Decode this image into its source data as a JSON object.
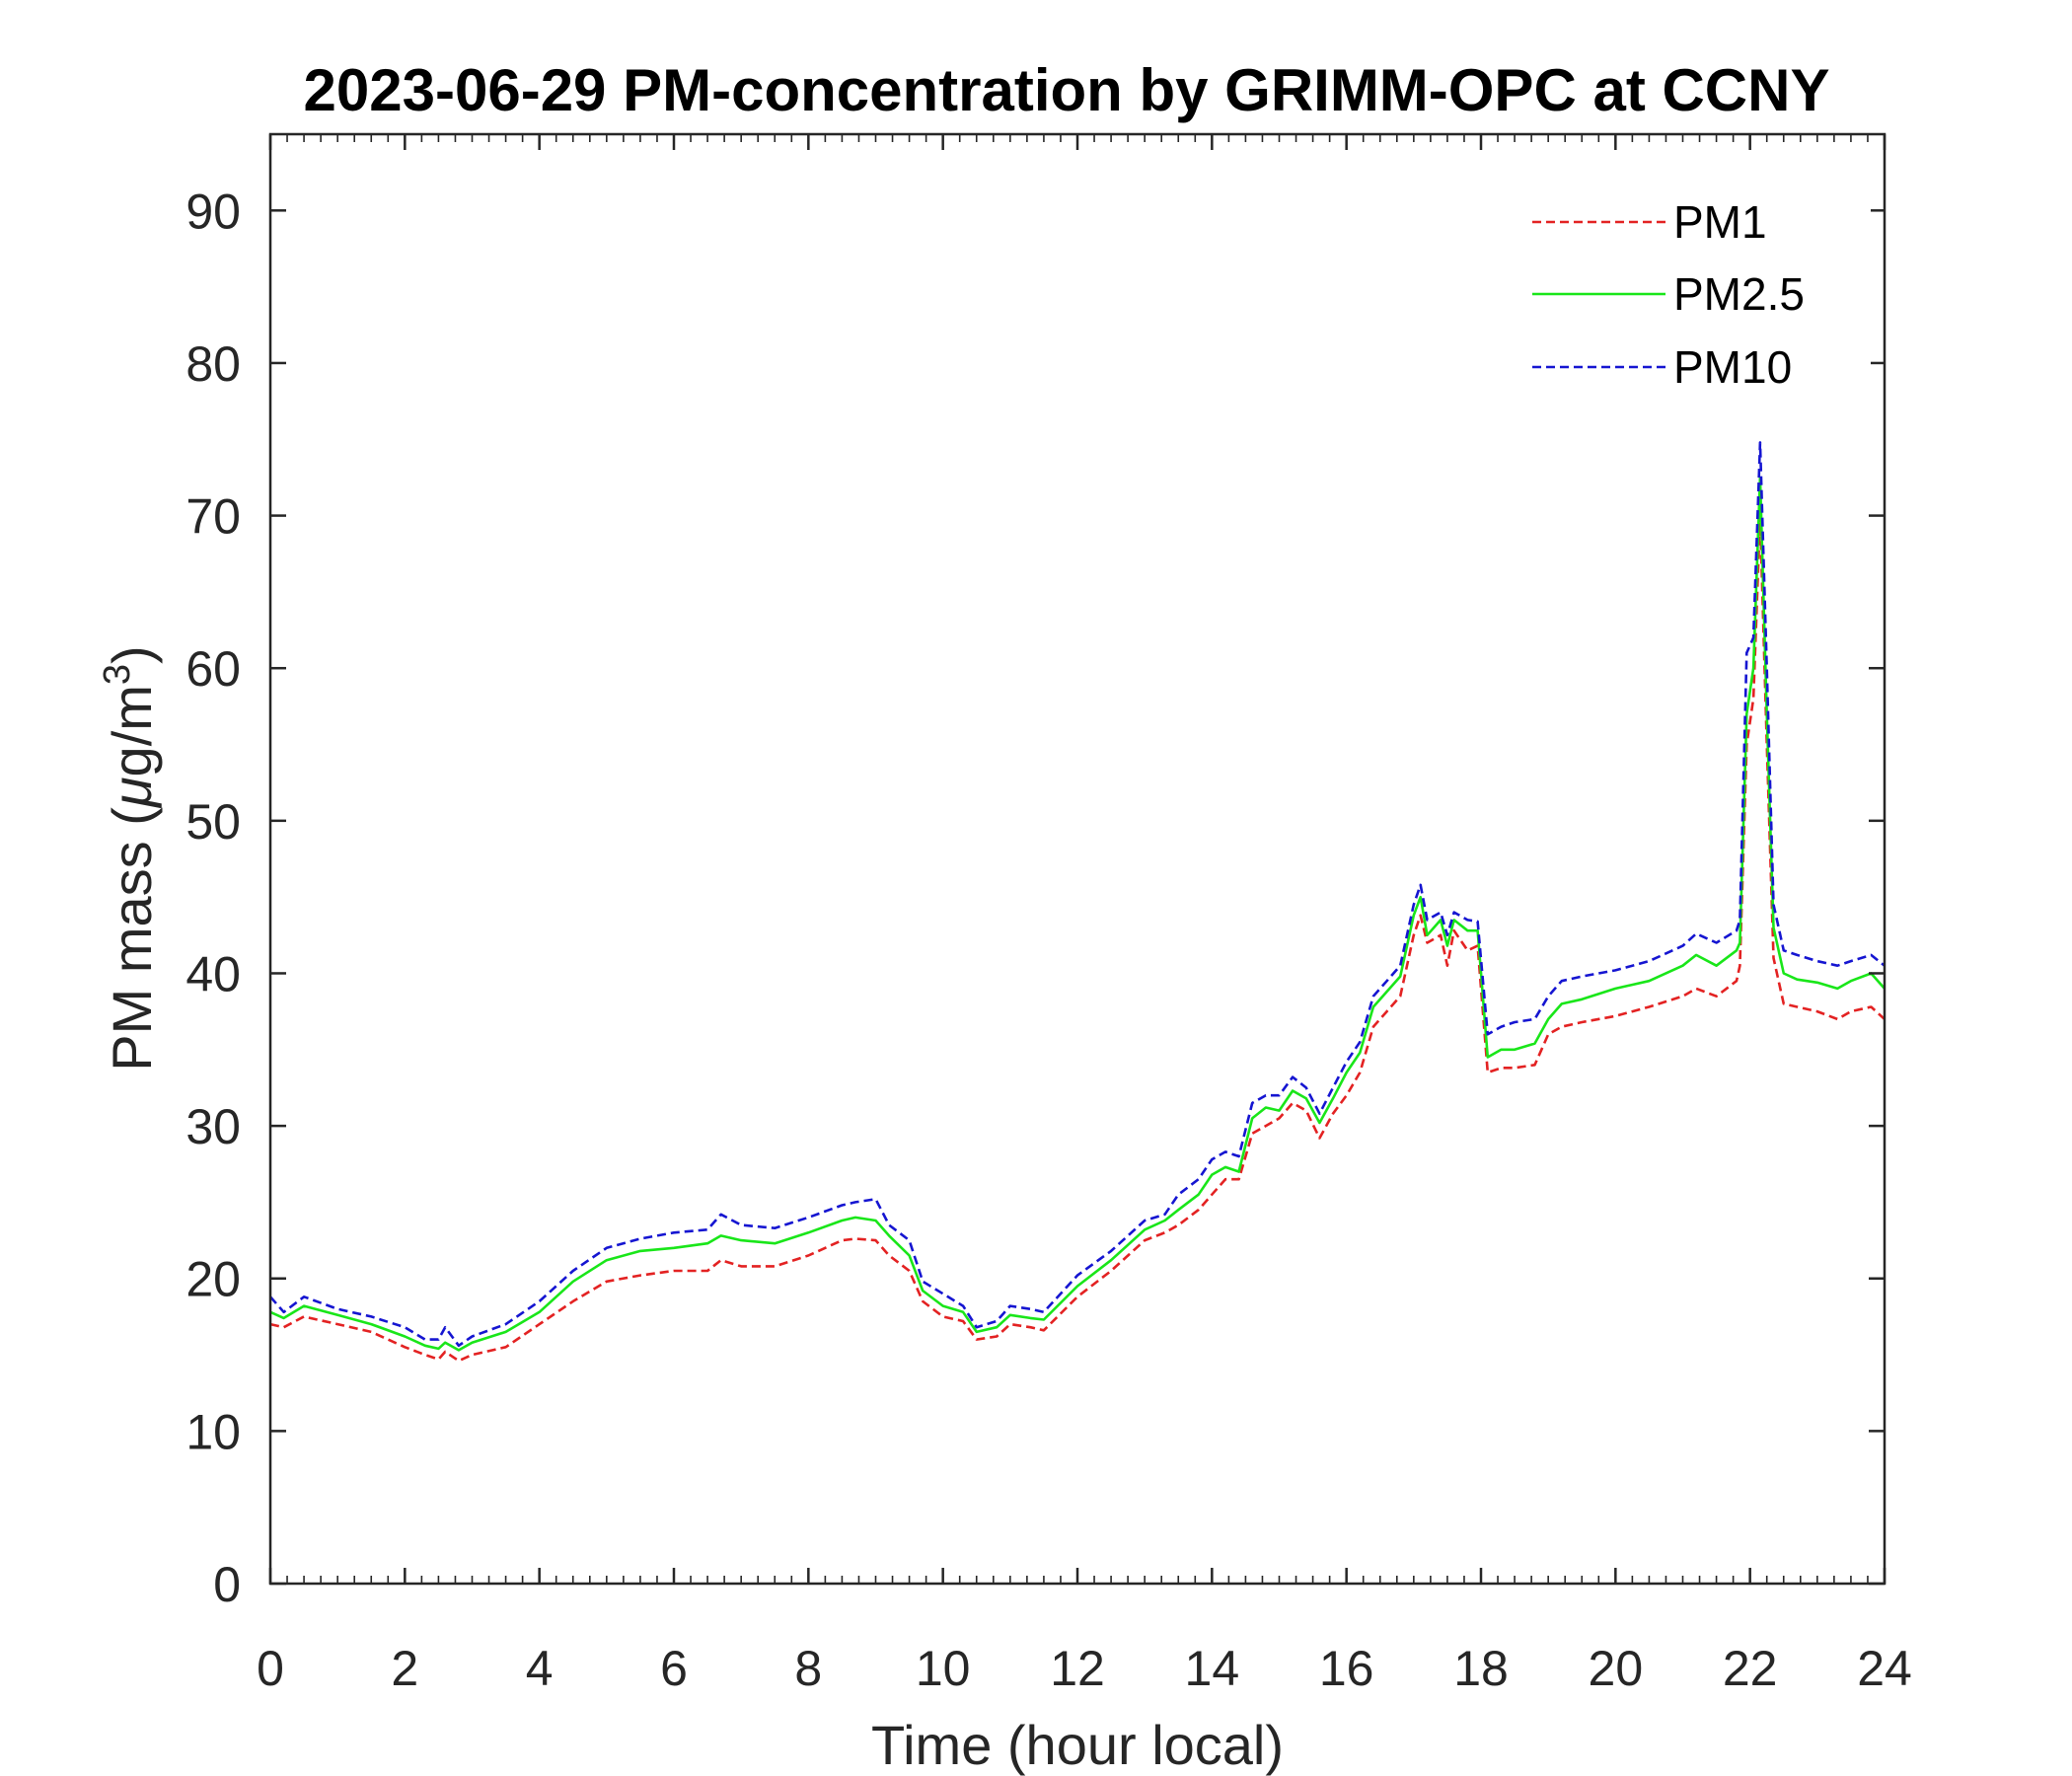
{
  "chart_data": {
    "type": "line",
    "title": "2023-06-29 PM-concentration by GRIMM-OPC at CCNY",
    "xlabel": "Time (hour local)",
    "ylabel_main": "PM mass (",
    "ylabel_mu": "μ",
    "ylabel_unit": "g/m",
    "ylabel_sup": "3",
    "ylabel_close": ")",
    "xlim": [
      0,
      24
    ],
    "ylim": [
      0,
      95
    ],
    "xticks": [
      0,
      2,
      4,
      6,
      8,
      10,
      12,
      14,
      16,
      18,
      20,
      22,
      24
    ],
    "yticks": [
      0,
      10,
      20,
      30,
      40,
      50,
      60,
      70,
      80,
      90
    ],
    "grid": false,
    "legend_position": "top-right",
    "series": [
      {
        "name": "PM1",
        "color": "#e32222",
        "dash": "dashed",
        "x": [
          0,
          0.2,
          0.5,
          1.0,
          1.5,
          2.0,
          2.3,
          2.5,
          2.6,
          2.8,
          3.0,
          3.5,
          4.0,
          4.5,
          5.0,
          5.5,
          6.0,
          6.5,
          6.7,
          7.0,
          7.5,
          8.0,
          8.5,
          8.7,
          9.0,
          9.2,
          9.5,
          9.7,
          10.0,
          10.3,
          10.5,
          10.8,
          11.0,
          11.3,
          11.5,
          12.0,
          12.5,
          13.0,
          13.3,
          13.5,
          13.8,
          14.0,
          14.2,
          14.4,
          14.6,
          14.8,
          15.0,
          15.2,
          15.4,
          15.6,
          15.8,
          16.0,
          16.2,
          16.4,
          16.6,
          16.8,
          17.0,
          17.1,
          17.2,
          17.4,
          17.5,
          17.6,
          17.8,
          17.95,
          18.1,
          18.3,
          18.5,
          18.8,
          19.0,
          19.2,
          19.5,
          20.0,
          20.5,
          21.0,
          21.2,
          21.5,
          21.8,
          21.85,
          21.95,
          22.05,
          22.15,
          22.25,
          22.35,
          22.5,
          22.7,
          23.0,
          23.3,
          23.5,
          23.8,
          24.0
        ],
        "y": [
          17.0,
          16.8,
          17.5,
          17.0,
          16.5,
          15.5,
          15.0,
          14.7,
          15.2,
          14.6,
          15.0,
          15.5,
          17.0,
          18.5,
          19.8,
          20.2,
          20.5,
          20.5,
          21.2,
          20.8,
          20.8,
          21.5,
          22.5,
          22.6,
          22.5,
          21.5,
          20.5,
          18.5,
          17.5,
          17.2,
          16.0,
          16.2,
          17.0,
          16.8,
          16.6,
          18.8,
          20.5,
          22.5,
          23.0,
          23.5,
          24.5,
          25.5,
          26.5,
          26.5,
          29.5,
          30.0,
          30.5,
          31.5,
          31.0,
          29.2,
          30.8,
          32.0,
          33.5,
          36.5,
          37.5,
          38.5,
          42.5,
          43.8,
          42.0,
          42.5,
          40.5,
          42.8,
          41.5,
          41.8,
          33.5,
          33.8,
          33.8,
          34.0,
          36.0,
          36.5,
          36.8,
          37.2,
          37.8,
          38.5,
          39.0,
          38.5,
          39.5,
          40.5,
          55.0,
          58.0,
          70.0,
          55.0,
          41.0,
          38.0,
          37.8,
          37.5,
          37.0,
          37.5,
          37.8,
          37.0
        ]
      },
      {
        "name": "PM2.5",
        "color": "#19e619",
        "dash": "solid",
        "x": [
          0,
          0.2,
          0.5,
          1.0,
          1.5,
          2.0,
          2.3,
          2.5,
          2.6,
          2.8,
          3.0,
          3.5,
          4.0,
          4.5,
          5.0,
          5.5,
          6.0,
          6.5,
          6.7,
          7.0,
          7.5,
          8.0,
          8.5,
          8.7,
          9.0,
          9.2,
          9.5,
          9.7,
          10.0,
          10.3,
          10.5,
          10.8,
          11.0,
          11.3,
          11.5,
          12.0,
          12.5,
          13.0,
          13.3,
          13.5,
          13.8,
          14.0,
          14.2,
          14.4,
          14.6,
          14.8,
          15.0,
          15.2,
          15.4,
          15.6,
          15.8,
          16.0,
          16.2,
          16.4,
          16.6,
          16.8,
          17.0,
          17.1,
          17.2,
          17.4,
          17.5,
          17.6,
          17.8,
          17.95,
          18.1,
          18.3,
          18.5,
          18.8,
          19.0,
          19.2,
          19.5,
          20.0,
          20.5,
          21.0,
          21.2,
          21.5,
          21.8,
          21.85,
          21.95,
          22.05,
          22.15,
          22.25,
          22.35,
          22.5,
          22.7,
          23.0,
          23.3,
          23.5,
          23.8,
          24.0
        ],
        "y": [
          17.8,
          17.4,
          18.2,
          17.6,
          17.0,
          16.2,
          15.6,
          15.4,
          15.8,
          15.3,
          15.8,
          16.5,
          17.8,
          19.8,
          21.2,
          21.8,
          22.0,
          22.3,
          22.8,
          22.5,
          22.3,
          23.0,
          23.8,
          24.0,
          23.8,
          22.8,
          21.5,
          19.2,
          18.2,
          17.8,
          16.5,
          16.8,
          17.6,
          17.4,
          17.3,
          19.5,
          21.2,
          23.2,
          23.8,
          24.5,
          25.5,
          26.8,
          27.3,
          27.0,
          30.5,
          31.2,
          31.0,
          32.3,
          31.8,
          30.2,
          31.8,
          33.5,
          34.8,
          37.8,
          38.8,
          39.8,
          43.8,
          45.0,
          42.5,
          43.5,
          41.8,
          43.5,
          42.8,
          42.8,
          34.5,
          35.0,
          35.0,
          35.4,
          37.0,
          38.0,
          38.3,
          39.0,
          39.5,
          40.5,
          41.2,
          40.5,
          41.5,
          42.0,
          57.0,
          60.0,
          72.5,
          57.0,
          43.0,
          40.0,
          39.6,
          39.4,
          39.0,
          39.5,
          40.0,
          39.0
        ]
      },
      {
        "name": "PM10",
        "color": "#1515d1",
        "dash": "dashed",
        "x": [
          0,
          0.2,
          0.5,
          1.0,
          1.5,
          2.0,
          2.3,
          2.5,
          2.6,
          2.8,
          3.0,
          3.5,
          4.0,
          4.5,
          5.0,
          5.5,
          6.0,
          6.5,
          6.7,
          7.0,
          7.5,
          8.0,
          8.5,
          8.7,
          9.0,
          9.2,
          9.5,
          9.7,
          10.0,
          10.3,
          10.5,
          10.8,
          11.0,
          11.3,
          11.5,
          12.0,
          12.5,
          13.0,
          13.3,
          13.5,
          13.8,
          14.0,
          14.2,
          14.4,
          14.6,
          14.8,
          15.0,
          15.2,
          15.4,
          15.6,
          15.8,
          16.0,
          16.2,
          16.4,
          16.6,
          16.8,
          17.0,
          17.1,
          17.2,
          17.4,
          17.5,
          17.6,
          17.8,
          17.95,
          18.1,
          18.3,
          18.5,
          18.8,
          19.0,
          19.2,
          19.5,
          20.0,
          20.5,
          21.0,
          21.2,
          21.5,
          21.8,
          21.85,
          21.95,
          22.05,
          22.15,
          22.25,
          22.35,
          22.5,
          22.7,
          23.0,
          23.3,
          23.5,
          23.8,
          24.0
        ],
        "y": [
          18.8,
          17.8,
          18.8,
          18.0,
          17.5,
          16.8,
          16.0,
          16.0,
          16.8,
          15.6,
          16.2,
          17.0,
          18.5,
          20.5,
          22.0,
          22.6,
          23.0,
          23.2,
          24.2,
          23.5,
          23.3,
          24.0,
          24.8,
          25.0,
          25.2,
          23.5,
          22.5,
          19.8,
          19.0,
          18.2,
          16.8,
          17.2,
          18.2,
          18.0,
          17.8,
          20.2,
          21.8,
          23.8,
          24.2,
          25.5,
          26.5,
          27.8,
          28.3,
          28.0,
          31.5,
          32.0,
          32.0,
          33.2,
          32.5,
          30.8,
          32.5,
          34.2,
          35.5,
          38.5,
          39.5,
          40.5,
          44.5,
          45.8,
          43.5,
          44.0,
          42.5,
          44.0,
          43.5,
          43.4,
          36.0,
          36.5,
          36.8,
          37.0,
          38.5,
          39.5,
          39.8,
          40.2,
          40.8,
          41.8,
          42.6,
          42.0,
          42.8,
          43.5,
          61.0,
          62.0,
          74.8,
          60.0,
          44.5,
          41.5,
          41.2,
          40.8,
          40.5,
          40.8,
          41.2,
          40.5
        ]
      }
    ]
  }
}
